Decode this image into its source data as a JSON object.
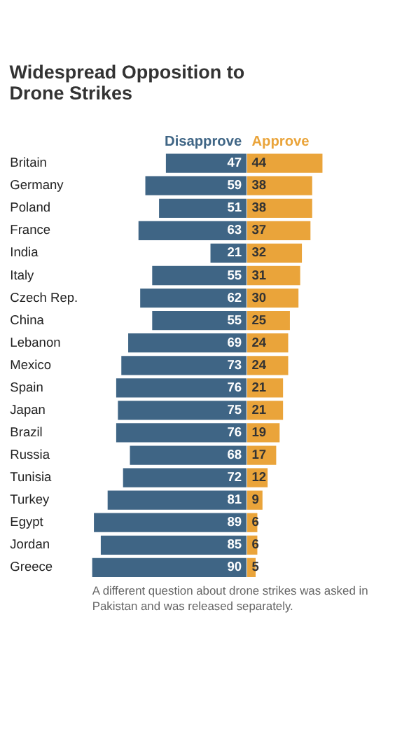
{
  "chart_data": [
    {
      "type": "bar",
      "orientation": "horizontal",
      "title": "Widespread Opposition to Drone Strikes",
      "categories": [
        "Britain",
        "Germany",
        "Poland",
        "France",
        "India",
        "Italy",
        "Czech Rep.",
        "China",
        "Lebanon",
        "Mexico",
        "Spain",
        "Japan",
        "Brazil",
        "Russia",
        "Tunisia",
        "Turkey",
        "Egypt",
        "Jordan",
        "Greece"
      ],
      "xlim": [
        90,
        0
      ],
      "tick_labels": "y",
      "series": [
        {
          "name": "Disapprove",
          "color": "#3f6585",
          "values": [
            47,
            59,
            51,
            63,
            21,
            55,
            62,
            55,
            69,
            73,
            76,
            75,
            76,
            68,
            72,
            81,
            89,
            85,
            90
          ]
        }
      ],
      "data_labels": true,
      "annotations": [
        "A different question about drone strikes was asked in Pakistan and was released separately."
      ]
    },
    {
      "type": "bar",
      "orientation": "horizontal",
      "categories": [
        "Britain",
        "Germany",
        "Poland",
        "France",
        "India",
        "Italy",
        "Czech Rep.",
        "China",
        "Lebanon",
        "Mexico",
        "Spain",
        "Japan",
        "Brazil",
        "Russia",
        "Tunisia",
        "Turkey",
        "Egypt",
        "Jordan",
        "Greece"
      ],
      "xlim": [
        0,
        44
      ],
      "tick_labels": false,
      "series": [
        {
          "name": "Approve",
          "color": "#eaa43a",
          "values": [
            44,
            38,
            38,
            37,
            32,
            31,
            30,
            25,
            24,
            24,
            21,
            21,
            19,
            17,
            12,
            9,
            6,
            6,
            5
          ]
        }
      ],
      "data_labels": true
    }
  ]
}
